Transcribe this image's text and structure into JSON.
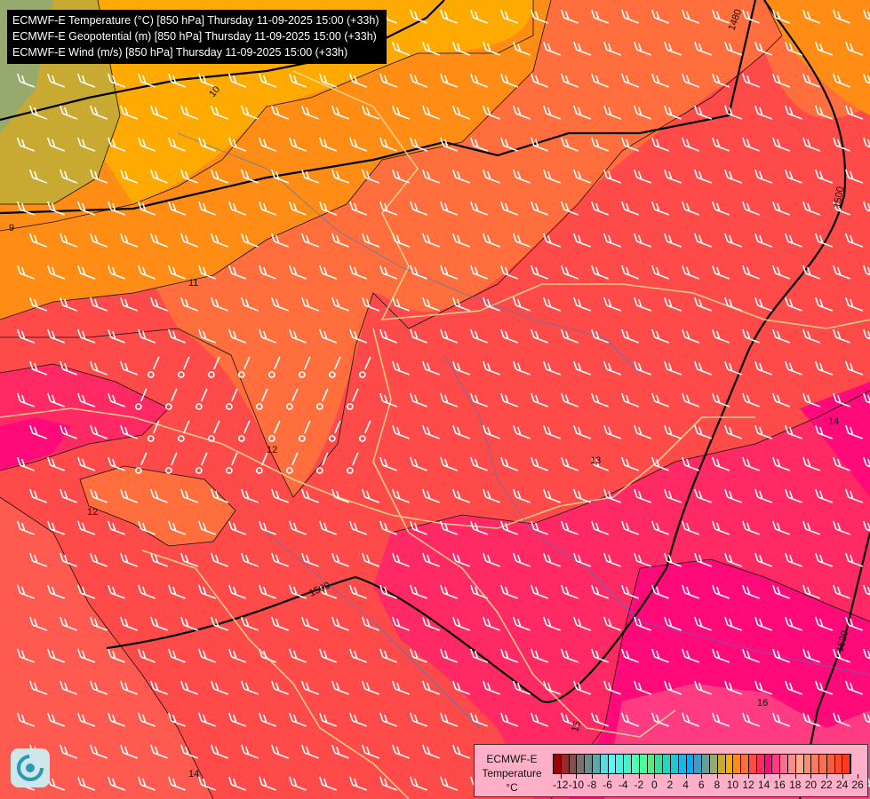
{
  "header": {
    "lines": [
      "ECMWF-E Temperature (°C) [850 hPa] Thursday 11-09-2025 15:00 (+33h)",
      "ECMWF-E Geopotential (m) [850 hPa] Thursday 11-09-2025 15:00 (+33h)",
      "ECMWF-E Wind (m/s) [850 hPa] Thursday 11-09-2025 15:00 (+33h)"
    ]
  },
  "legend": {
    "title_lines": [
      "ECMWF-E",
      "Temperature",
      "°C"
    ],
    "tick_labels": [
      "-12",
      "-10",
      "-8",
      "-6",
      "-4",
      "-2",
      "0",
      "2",
      "4",
      "6",
      "8",
      "10",
      "12",
      "14",
      "16",
      "18",
      "20",
      "22",
      "24",
      "26"
    ],
    "colors": [
      "#a00000",
      "#9a2a2a",
      "#8c4a4a",
      "#7f6e6e",
      "#6e8a8a",
      "#5aaaaa",
      "#5adcdc",
      "#4cffff",
      "#4cf0e0",
      "#4cf0c8",
      "#4cffb4",
      "#4cff9a",
      "#4cf07a",
      "#3cdca0",
      "#2cd2c0",
      "#1cc8d2",
      "#1cb4e6",
      "#00aaff",
      "#3c9ec8",
      "#64a096",
      "#96aa6e",
      "#c8aa32",
      "#ffaa00",
      "#ff8c14",
      "#ff6e3c",
      "#ff4a4a",
      "#ff2a64",
      "#ff0a78",
      "#ff3c82",
      "#ff6e8c",
      "#ff8c8c",
      "#ffaa8c",
      "#ff8c6e",
      "#ff7a5a",
      "#ff6e50",
      "#ff5a3c",
      "#ff4a28",
      "#ff3a1a"
    ]
  },
  "map": {
    "geopotential_labels": [
      "1480",
      "1500",
      "1500",
      "1520"
    ],
    "temperature_labels": [
      "9",
      "10",
      "11",
      "12",
      "12",
      "13",
      "14",
      "15",
      "16",
      "14"
    ]
  }
}
